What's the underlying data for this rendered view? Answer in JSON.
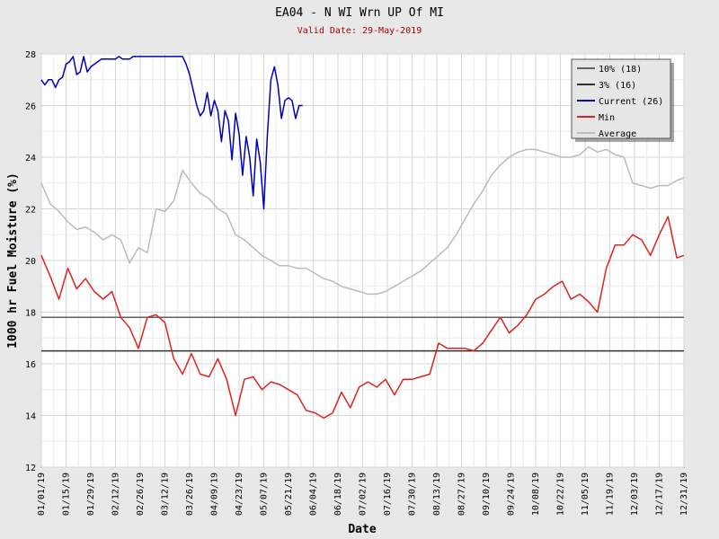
{
  "chart_data": {
    "type": "line",
    "title": "EA04 - N WI Wrn UP Of MI",
    "subtitle": "Valid Date: 29-May-2019",
    "xlabel": "Date",
    "ylabel": "1000 hr Fuel Moisture (%)",
    "ylim": [
      12,
      28
    ],
    "yticks": [
      12,
      14,
      16,
      18,
      20,
      22,
      24,
      26,
      28
    ],
    "xlim": [
      0,
      364
    ],
    "xtick_labels": [
      "01/01/19",
      "01/15/19",
      "01/29/19",
      "02/12/19",
      "02/26/19",
      "03/12/19",
      "03/26/19",
      "04/09/19",
      "04/23/19",
      "05/07/19",
      "05/21/19",
      "06/04/19",
      "06/18/19",
      "07/02/19",
      "07/16/19",
      "07/30/19",
      "08/13/19",
      "08/27/19",
      "09/10/19",
      "09/24/19",
      "10/08/19",
      "10/22/19",
      "11/05/19",
      "11/19/19",
      "12/03/19",
      "12/17/19",
      "12/31/19"
    ],
    "xtick_days": [
      0,
      14,
      28,
      42,
      56,
      70,
      84,
      98,
      112,
      126,
      140,
      154,
      168,
      182,
      196,
      210,
      224,
      238,
      252,
      266,
      280,
      294,
      308,
      322,
      336,
      350,
      364
    ],
    "grid": true,
    "legend_position": "top-right",
    "series": [
      {
        "name": "10% (18)",
        "color": "#606060",
        "style": "hline",
        "value": 17.8
      },
      {
        "name": "3% (16)",
        "color": "#303030",
        "style": "hline",
        "value": 16.5
      },
      {
        "name": "Current (26)",
        "color": "#0000bb",
        "x": [
          0,
          2,
          4,
          6,
          8,
          10,
          12,
          14,
          16,
          18,
          20,
          22,
          24,
          26,
          28,
          30,
          32,
          34,
          36,
          38,
          40,
          42,
          44,
          46,
          48,
          50,
          52,
          54,
          56,
          58,
          60,
          62,
          64,
          66,
          68,
          70,
          72,
          74,
          76,
          78,
          80,
          82,
          84,
          86,
          88,
          90,
          92,
          94,
          96,
          98,
          100,
          102,
          104,
          106,
          108,
          110,
          112,
          114,
          116,
          118,
          120,
          122,
          124,
          126,
          128,
          130,
          132,
          134,
          136,
          138,
          140,
          142,
          144,
          146,
          148
        ],
        "y": [
          27.0,
          26.8,
          27.0,
          27.0,
          26.7,
          27.0,
          27.1,
          27.6,
          27.7,
          27.9,
          27.2,
          27.3,
          27.9,
          27.3,
          27.5,
          27.6,
          27.7,
          27.8,
          27.8,
          27.8,
          27.8,
          27.8,
          27.9,
          27.8,
          27.8,
          27.8,
          27.9,
          27.9,
          27.9,
          27.9,
          27.9,
          27.9,
          27.9,
          27.9,
          27.9,
          27.9,
          27.9,
          27.9,
          27.9,
          27.9,
          27.9,
          27.6,
          27.2,
          26.6,
          26.0,
          25.6,
          25.8,
          26.5,
          25.6,
          26.2,
          25.8,
          24.6,
          25.8,
          25.4,
          23.9,
          25.7,
          24.9,
          23.3,
          24.8,
          24.0,
          22.5,
          24.7,
          23.8,
          22.0,
          24.8,
          27.0,
          27.5,
          26.8,
          25.5,
          26.2,
          26.3,
          26.2,
          25.5,
          26.0,
          26.0
        ]
      },
      {
        "name": "Min",
        "color": "#dd2222",
        "x": [
          0,
          5,
          10,
          15,
          20,
          25,
          30,
          35,
          40,
          45,
          50,
          55,
          60,
          65,
          70,
          75,
          80,
          85,
          90,
          95,
          100,
          105,
          110,
          115,
          120,
          125,
          130,
          135,
          140,
          145,
          150,
          155,
          160,
          165,
          170,
          175,
          180,
          185,
          190,
          195,
          200,
          205,
          210,
          215,
          220,
          225,
          230,
          235,
          240,
          245,
          250,
          255,
          260,
          265,
          270,
          275,
          280,
          285,
          290,
          295,
          300,
          305,
          310,
          315,
          320,
          325,
          330,
          335,
          340,
          345,
          350,
          355,
          360,
          364
        ],
        "y": [
          20.2,
          19.4,
          18.5,
          19.7,
          18.9,
          19.3,
          18.8,
          18.5,
          18.8,
          17.8,
          17.4,
          16.6,
          17.8,
          17.9,
          17.6,
          16.2,
          15.6,
          16.4,
          15.6,
          15.5,
          16.2,
          15.4,
          14.0,
          15.4,
          15.5,
          15.0,
          15.3,
          15.2,
          15.0,
          14.8,
          14.2,
          14.1,
          13.9,
          14.1,
          14.9,
          14.3,
          15.1,
          15.3,
          15.1,
          15.4,
          14.8,
          15.4,
          15.4,
          15.5,
          15.6,
          16.8,
          16.6,
          16.6,
          16.6,
          16.5,
          16.8,
          17.3,
          17.8,
          17.2,
          17.5,
          17.9,
          18.5,
          18.7,
          19.0,
          19.2,
          18.5,
          18.7,
          18.4,
          18.0,
          19.7,
          20.6,
          20.6,
          21.0,
          20.8,
          20.2,
          21.0,
          21.7,
          20.1,
          20.2
        ]
      },
      {
        "name": "Average",
        "color": "#bbbbbb",
        "x": [
          0,
          5,
          10,
          15,
          20,
          25,
          30,
          35,
          40,
          45,
          50,
          55,
          60,
          65,
          70,
          75,
          80,
          85,
          90,
          95,
          100,
          105,
          110,
          115,
          120,
          125,
          130,
          135,
          140,
          145,
          150,
          155,
          160,
          165,
          170,
          175,
          180,
          185,
          190,
          195,
          200,
          205,
          210,
          215,
          220,
          225,
          230,
          235,
          240,
          245,
          250,
          255,
          260,
          265,
          270,
          275,
          280,
          285,
          290,
          295,
          300,
          305,
          310,
          315,
          320,
          325,
          330,
          335,
          340,
          345,
          350,
          355,
          360,
          364
        ],
        "y": [
          23.0,
          22.2,
          21.9,
          21.5,
          21.2,
          21.3,
          21.1,
          20.8,
          21.0,
          20.8,
          19.9,
          20.5,
          20.3,
          22.0,
          21.9,
          22.3,
          23.5,
          23.0,
          22.6,
          22.4,
          22.0,
          21.8,
          21.0,
          20.8,
          20.5,
          20.2,
          20.0,
          19.8,
          19.8,
          19.7,
          19.7,
          19.5,
          19.3,
          19.2,
          19.0,
          18.9,
          18.8,
          18.7,
          18.7,
          18.8,
          19.0,
          19.2,
          19.4,
          19.6,
          19.9,
          20.2,
          20.5,
          21.0,
          21.6,
          22.2,
          22.7,
          23.3,
          23.7,
          24.0,
          24.2,
          24.3,
          24.3,
          24.2,
          24.1,
          24.0,
          24.0,
          24.1,
          24.4,
          24.2,
          24.3,
          24.1,
          24.0,
          23.0,
          22.9,
          22.8,
          22.9,
          22.9,
          23.1,
          23.2
        ]
      }
    ]
  }
}
